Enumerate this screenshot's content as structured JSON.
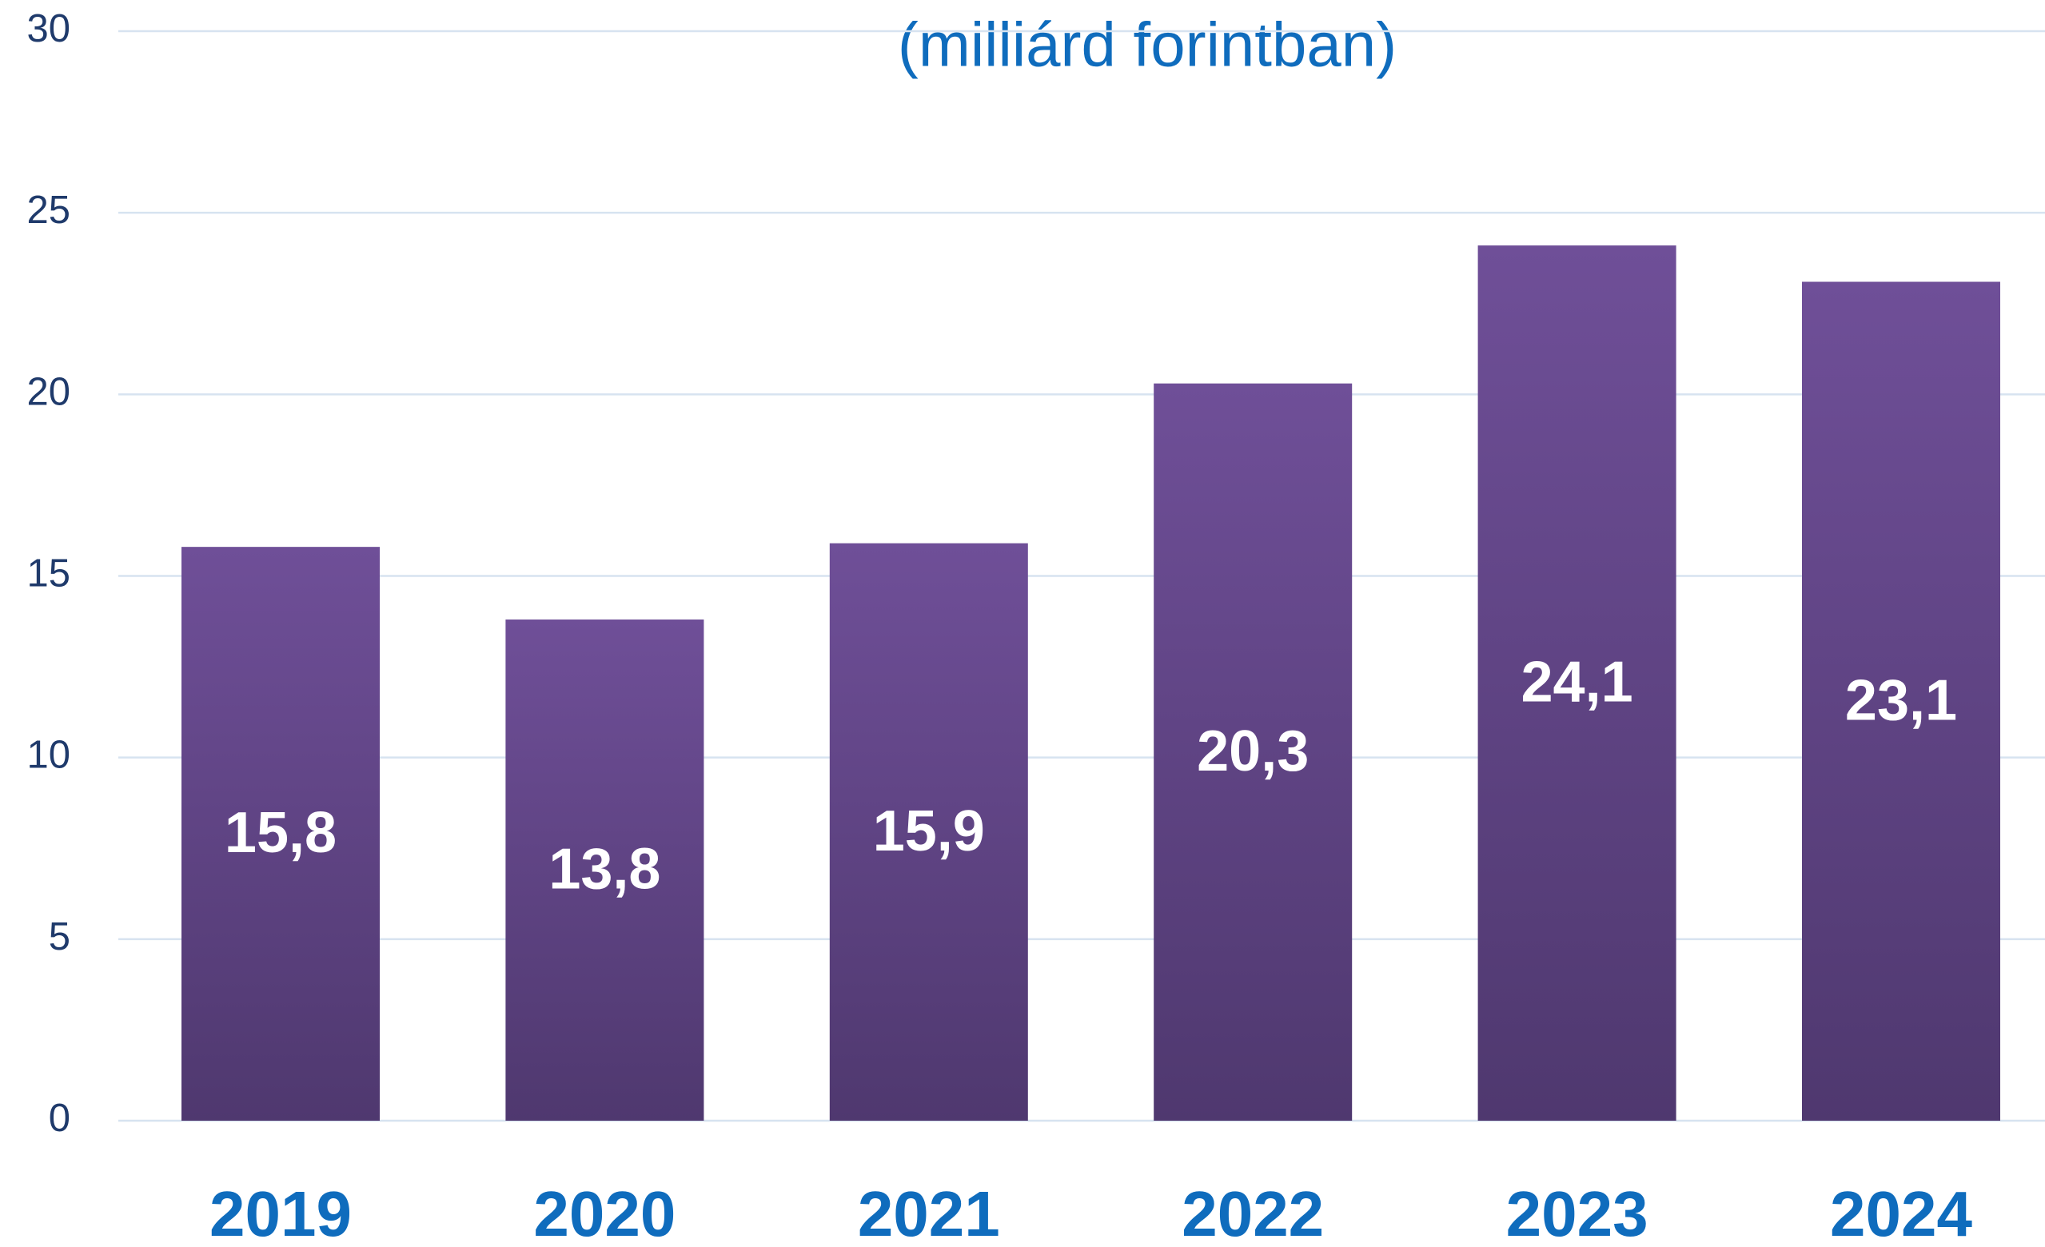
{
  "chart_data": {
    "type": "bar",
    "subtitle": "(milliárd forintban)",
    "categories": [
      "2019",
      "2020",
      "2021",
      "2022",
      "2023",
      "2024"
    ],
    "values": [
      15.8,
      13.8,
      15.9,
      20.3,
      24.1,
      23.1
    ],
    "value_labels": [
      "15,8",
      "13,8",
      "15,9",
      "20,3",
      "24,1",
      "23,1"
    ],
    "color": "#6b4c93",
    "ylim": [
      0,
      30
    ],
    "yticks": [
      0,
      5,
      10,
      15,
      20,
      25,
      30
    ],
    "grid": true
  }
}
